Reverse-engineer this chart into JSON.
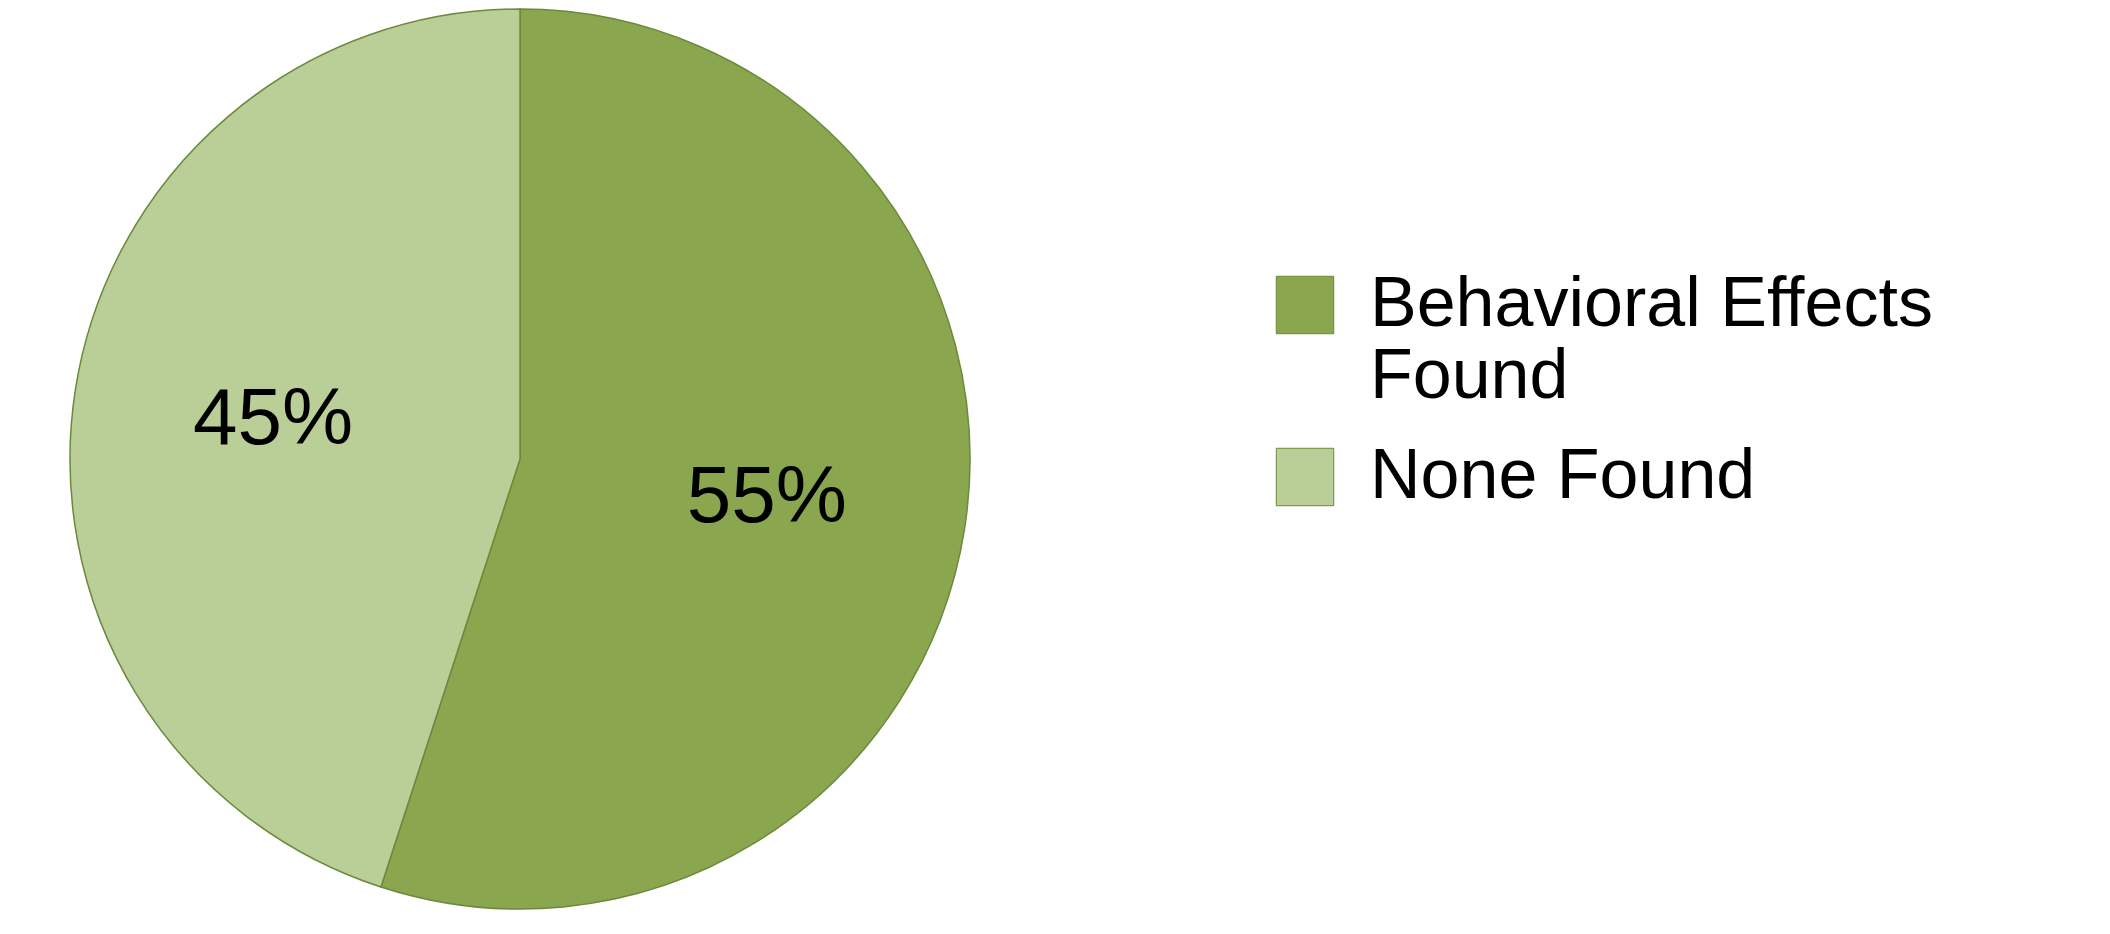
{
  "chart_data": {
    "type": "pie",
    "categories": [
      "Behavioral Effects Found",
      "None Found"
    ],
    "values": [
      55,
      45
    ],
    "colors": [
      "#8aa64f",
      "#bacf98"
    ],
    "value_labels": [
      "55%",
      "45%"
    ],
    "legend": "right"
  }
}
